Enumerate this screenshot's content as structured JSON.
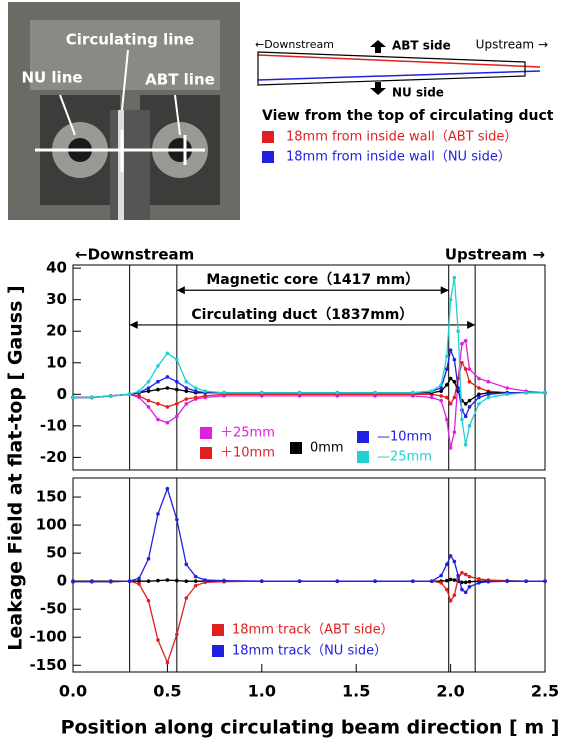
{
  "photo": {
    "labels": [
      "Circulating line",
      "NU line",
      "ABT line"
    ]
  },
  "schematic": {
    "downstream": "←Downstream",
    "abt_side": "ABT side",
    "upstream": "Upstream →",
    "nu_side": "NU side",
    "caption": "View from the top of circulating duct",
    "legend": [
      {
        "name": "18mm from inside wall（ABT side）",
        "color": "#e02020"
      },
      {
        "name": "18mm from inside wall（NU side）",
        "color": "#2020e0"
      }
    ]
  },
  "figure": {
    "ylabel": "Leakage Field at flat-top [ Gauss ]",
    "xlabel": "Position along circulating beam direction [ m ]"
  },
  "chart_data": [
    {
      "type": "line",
      "left_note": "←Downstream",
      "right_note": "Upstream →",
      "xlim": [
        0,
        2.5
      ],
      "ylim": [
        -24,
        41
      ],
      "yticks": [
        -20,
        -10,
        0,
        10,
        20,
        30,
        40
      ],
      "vlines": [
        0.3,
        0.55,
        1.99,
        2.13
      ],
      "annotations": [
        {
          "text": "Magnetic core（1417 mm）",
          "from": 0.55,
          "to": 1.99,
          "y": 33
        },
        {
          "text": "Circulating duct（1837mm）",
          "from": 0.3,
          "to": 2.13,
          "y": 22
        }
      ],
      "x": [
        0,
        0.1,
        0.2,
        0.3,
        0.35,
        0.4,
        0.45,
        0.5,
        0.55,
        0.6,
        0.65,
        0.7,
        0.8,
        1.0,
        1.2,
        1.4,
        1.6,
        1.8,
        1.9,
        1.95,
        1.98,
        2.0,
        2.02,
        2.04,
        2.06,
        2.08,
        2.1,
        2.15,
        2.2,
        2.3,
        2.4,
        2.5
      ],
      "series": [
        {
          "name": "＋25mm",
          "color": "#e020e0",
          "values": [
            -1,
            -1,
            -0.5,
            0,
            -1,
            -4,
            -8,
            -9,
            -7,
            -3,
            -1.5,
            -1,
            -0.5,
            -0.5,
            -0.5,
            -0.5,
            -0.5,
            -0.5,
            -1,
            -2,
            -8,
            -17,
            -12,
            5,
            16,
            17,
            8,
            5,
            4,
            2,
            1,
            0.5
          ]
        },
        {
          "name": "＋10mm",
          "color": "#e02020",
          "values": [
            -1,
            -1,
            -0.5,
            0,
            -0.5,
            -2,
            -3,
            -4,
            -3,
            -1.5,
            -1,
            -0.5,
            0,
            0,
            0,
            0,
            0,
            0,
            0,
            -0.5,
            -1,
            -3,
            -1,
            5,
            10,
            8,
            4,
            2,
            1,
            0.5,
            0.5,
            0.5
          ]
        },
        {
          "name": "0mm",
          "color": "#000000",
          "values": [
            -1,
            -1,
            -0.5,
            0,
            0.5,
            1,
            1.5,
            2,
            1.5,
            1,
            0.5,
            0.5,
            0.5,
            0.5,
            0.5,
            0.5,
            0.5,
            0.5,
            0.5,
            1,
            3,
            5,
            4,
            1,
            -2,
            -3,
            -2,
            0,
            0.5,
            0.5,
            0.5,
            0.5
          ]
        },
        {
          "name": "—10mm",
          "color": "#2020e0",
          "values": [
            -1,
            -1,
            -0.5,
            0,
            0.5,
            2,
            4,
            5.5,
            4,
            2,
            1,
            0.5,
            0.5,
            0.5,
            0.5,
            0.5,
            0.5,
            0.5,
            1,
            2,
            8,
            14,
            11,
            2,
            -5,
            -7,
            -4,
            -1,
            0,
            0.5,
            0.5,
            0.5
          ]
        },
        {
          "name": "—25mm",
          "color": "#20d0d0",
          "values": [
            -1,
            -1,
            -0.5,
            0,
            1,
            4,
            9,
            13,
            11,
            4,
            2,
            1,
            0.5,
            0.5,
            0.5,
            0.5,
            0.5,
            0.5,
            1,
            3,
            12,
            30,
            37,
            20,
            -8,
            -16,
            -10,
            -3,
            -1,
            0,
            0.5,
            0.5
          ]
        }
      ]
    },
    {
      "type": "line",
      "xlim": [
        0,
        2.5
      ],
      "ylim": [
        -162,
        184
      ],
      "yticks": [
        -150,
        -100,
        -50,
        0,
        50,
        100,
        150
      ],
      "xticks": [
        {
          "value": 0,
          "label": "0.0"
        },
        0.5,
        {
          "value": 1,
          "label": "1.0"
        },
        1.5,
        {
          "value": 2,
          "label": "2.0"
        },
        2.5
      ],
      "vlines": [
        0.3,
        0.55,
        1.99,
        2.13
      ],
      "x": [
        0,
        0.1,
        0.2,
        0.3,
        0.35,
        0.4,
        0.45,
        0.5,
        0.55,
        0.6,
        0.65,
        0.7,
        0.8,
        1.0,
        1.2,
        1.4,
        1.6,
        1.8,
        1.9,
        1.95,
        1.98,
        2.0,
        2.02,
        2.04,
        2.06,
        2.08,
        2.1,
        2.15,
        2.2,
        2.3,
        2.4,
        2.5
      ],
      "series": [
        {
          "color": "#000000",
          "values": [
            0,
            0,
            0,
            0,
            0,
            0,
            1,
            2,
            1,
            0,
            0,
            0,
            0,
            0,
            0,
            0,
            0,
            0,
            0,
            0,
            1,
            3,
            2,
            0,
            -2,
            -2,
            -1,
            0,
            0,
            0,
            0,
            0
          ]
        },
        {
          "name": "18mm track（ABT side）",
          "color": "#e02020",
          "values": [
            -1,
            -1,
            -1,
            0,
            -5,
            -35,
            -105,
            -145,
            -95,
            -30,
            -8,
            -2,
            -1,
            0,
            0,
            0,
            0,
            0,
            0,
            -3,
            -15,
            -35,
            -25,
            5,
            15,
            12,
            8,
            4,
            2,
            1,
            0,
            0
          ]
        },
        {
          "name": "18mm track（NU side）",
          "color": "#2020e0",
          "values": [
            -1,
            -1,
            -1,
            0,
            5,
            40,
            120,
            165,
            110,
            30,
            8,
            2,
            1,
            0,
            0,
            0,
            0,
            0,
            0,
            10,
            30,
            45,
            35,
            10,
            -15,
            -20,
            -10,
            -3,
            -1,
            0,
            0,
            0
          ]
        }
      ]
    }
  ]
}
